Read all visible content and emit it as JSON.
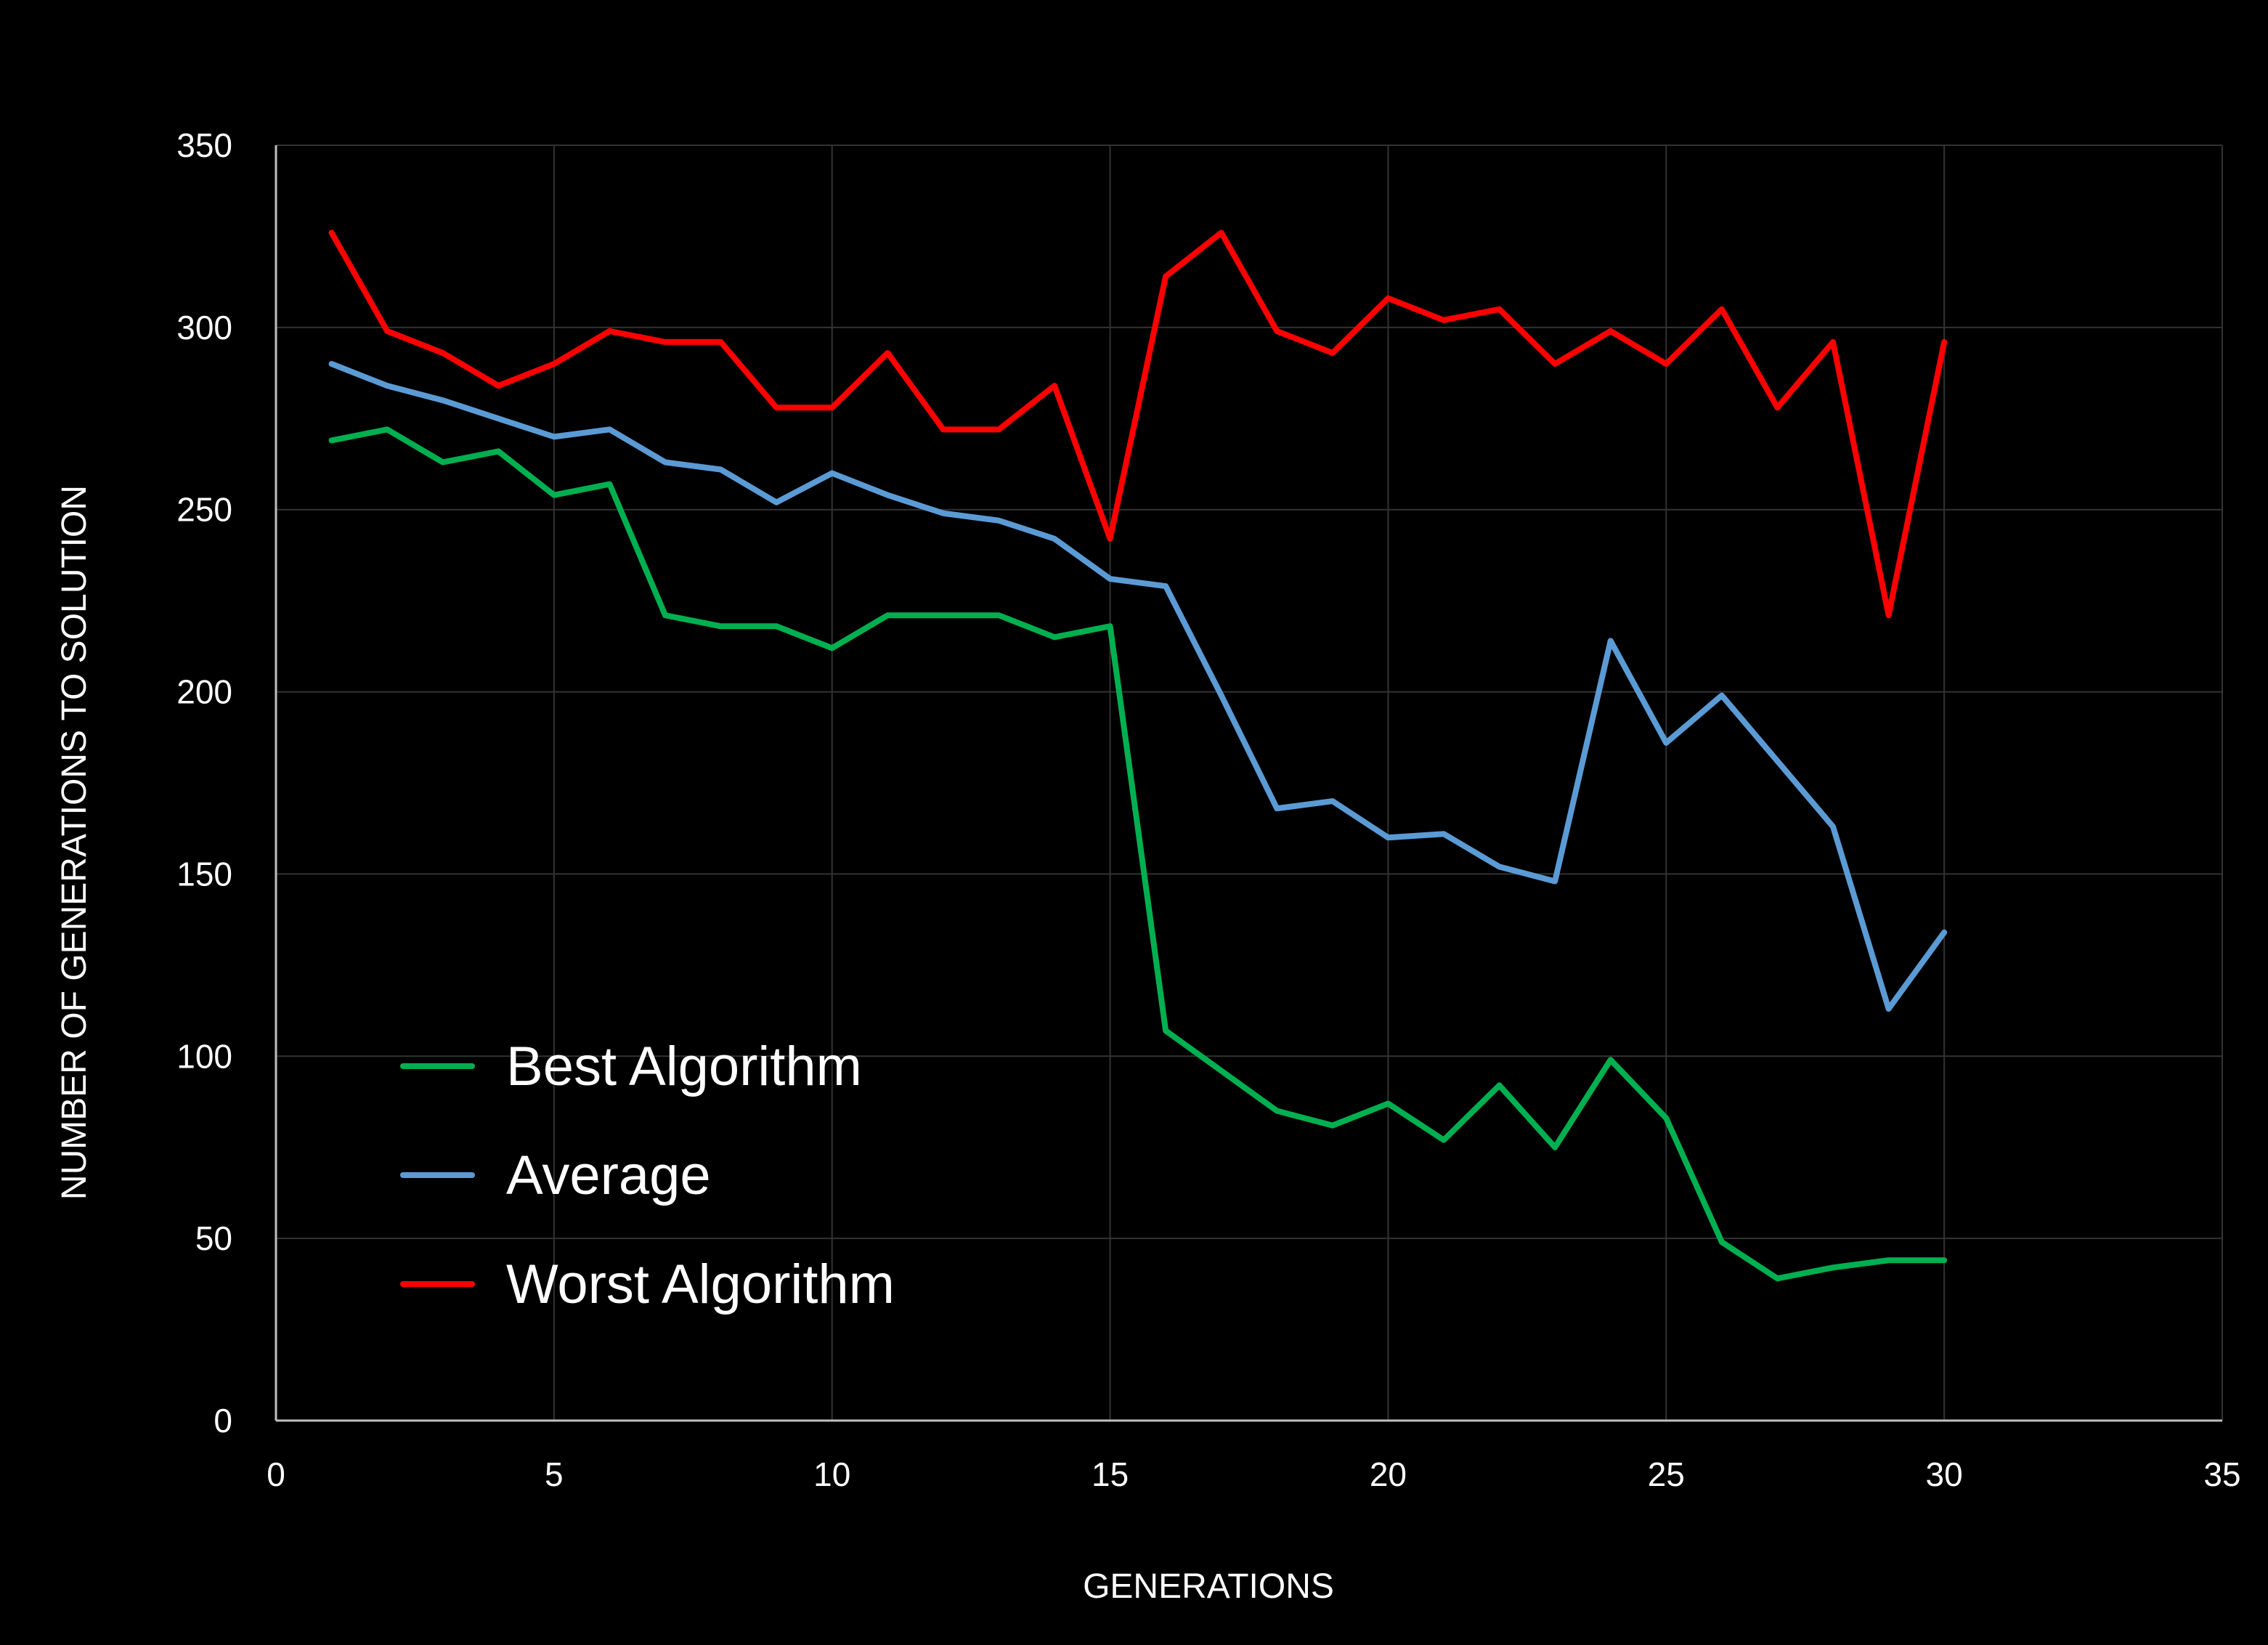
{
  "chart_data": {
    "type": "line",
    "title": "",
    "xlabel": "GENERATIONS",
    "ylabel": "NUMBER OF GENERATIONS TO SOLUTION",
    "xlim": [
      0,
      35
    ],
    "ylim": [
      0,
      350
    ],
    "x_ticks": [
      0,
      5,
      10,
      15,
      20,
      25,
      30,
      35
    ],
    "y_ticks": [
      0,
      50,
      100,
      150,
      200,
      250,
      300,
      350
    ],
    "x_tick_labels": [
      "0",
      "5",
      "10",
      "15",
      "20",
      "25",
      "30",
      "35"
    ],
    "y_tick_labels": [
      "0",
      "50",
      "100",
      "150",
      "200",
      "250",
      "300",
      "350"
    ],
    "grid": true,
    "legend_position": "bottom-left",
    "x": [
      1,
      2,
      3,
      4,
      5,
      6,
      7,
      8,
      9,
      10,
      11,
      12,
      13,
      14,
      15,
      16,
      17,
      18,
      19,
      20,
      21,
      22,
      23,
      24,
      25,
      26,
      27,
      28,
      29,
      30
    ],
    "series": [
      {
        "name": "Best Algorithm",
        "color": "#00b050",
        "values": [
          269,
          272,
          263,
          266,
          254,
          257,
          221,
          218,
          218,
          212,
          221,
          221,
          221,
          215,
          218,
          107,
          96,
          85,
          81,
          87,
          77,
          92,
          75,
          99,
          83,
          49,
          39,
          42,
          44,
          44
        ]
      },
      {
        "name": "Average",
        "color": "#5b9bd5",
        "values": [
          290,
          284,
          280,
          275,
          270,
          272,
          263,
          261,
          252,
          260,
          254,
          249,
          247,
          242,
          231,
          229,
          199,
          168,
          170,
          160,
          161,
          152,
          148,
          214,
          186,
          199,
          181,
          163,
          113,
          134
        ]
      },
      {
        "name": "Worst Algorithm",
        "color": "#ff0000",
        "values": [
          326,
          299,
          293,
          284,
          290,
          299,
          296,
          296,
          278,
          278,
          293,
          272,
          272,
          284,
          242,
          314,
          326,
          299,
          293,
          308,
          302,
          305,
          290,
          299,
          290,
          305,
          278,
          296,
          221,
          296
        ]
      }
    ]
  },
  "colors": {
    "background": "#000000",
    "gridline": "#333333",
    "axis": "#bfbfbf",
    "text": "#ffffff"
  }
}
